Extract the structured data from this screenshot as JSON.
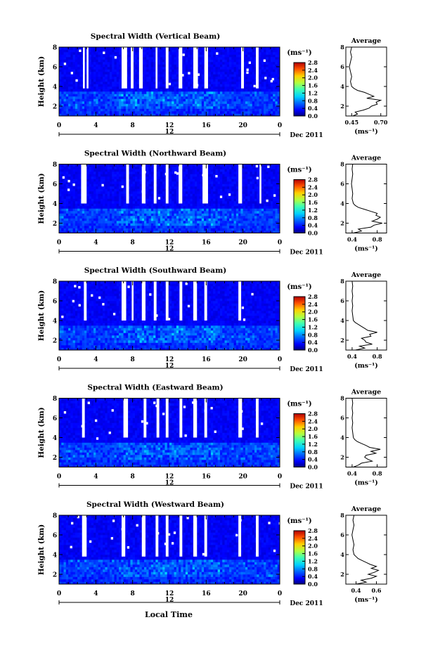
{
  "figure": {
    "x_title": "Local Time",
    "colorbar_unit": "(ms⁻¹)",
    "avg_title": "Average",
    "avg_unit": "(ms⁻¹)",
    "date_label": "Dec 2011",
    "midline_label": "12"
  },
  "chart_data": [
    {
      "type": "heatmap",
      "title": "Spectral Width (Vertical Beam)",
      "ylabel": "Height (km)",
      "xlabel": "Local Time",
      "x_ticks": [
        "0",
        "4",
        "8",
        "12",
        "16",
        "20",
        "0"
      ],
      "y_ticks": [
        "2",
        "4",
        "6",
        "8"
      ],
      "xlim": [
        0,
        24
      ],
      "ylim": [
        1,
        8
      ],
      "colorbar": {
        "label": "(ms⁻¹)",
        "ticks": [
          "0.0",
          "0.4",
          "0.8",
          "1.2",
          "1.6",
          "2.0",
          "2.4",
          "2.8"
        ],
        "range": [
          0,
          2.8
        ]
      },
      "gaps_hours": [
        [
          2.6,
          2.8
        ],
        [
          3.0,
          3.2
        ],
        [
          6.8,
          7.4
        ],
        [
          7.8,
          8.1
        ],
        [
          8.7,
          9.1
        ],
        [
          10.5,
          10.7
        ],
        [
          11.6,
          11.9
        ],
        [
          13.0,
          13.4
        ],
        [
          14.6,
          15.1
        ],
        [
          15.8,
          16.2
        ],
        [
          19.8,
          20.1
        ],
        [
          21.4,
          21.7
        ]
      ],
      "gap_top_km": [
        [
          2.6,
          3.8
        ],
        [
          3.0,
          3.8
        ],
        [
          6.8,
          3.8
        ],
        [
          7.8,
          3.8
        ],
        [
          8.7,
          3.8
        ],
        [
          10.5,
          3.8
        ],
        [
          11.6,
          3.8
        ],
        [
          13.0,
          3.8
        ],
        [
          14.6,
          3.8
        ],
        [
          15.8,
          3.8
        ],
        [
          19.8,
          3.8
        ],
        [
          21.4,
          3.8
        ]
      ],
      "enhanced_layer_km": [
        1.8,
        3.6
      ],
      "average_profile": {
        "xlabel": "(ms⁻¹)",
        "x_ticks": [
          "0.45",
          "0.70"
        ],
        "xlim": [
          0.4,
          0.75
        ],
        "y_ticks": [
          "2",
          "4",
          "6",
          "8"
        ],
        "ylim": [
          1,
          8
        ],
        "height_km": [
          1.0,
          1.2,
          1.4,
          1.6,
          1.8,
          2.0,
          2.2,
          2.4,
          2.6,
          2.8,
          3.0,
          3.2,
          3.4,
          3.6,
          3.8,
          4.0,
          4.5,
          5.0,
          5.5,
          6.0,
          6.5,
          7.0,
          7.5,
          8.0
        ],
        "value": [
          0.46,
          0.5,
          0.48,
          0.55,
          0.6,
          0.62,
          0.67,
          0.66,
          0.7,
          0.58,
          0.64,
          0.6,
          0.56,
          0.5,
          0.47,
          0.45,
          0.44,
          0.45,
          0.44,
          0.43,
          0.44,
          0.45,
          0.44,
          0.45
        ]
      }
    },
    {
      "type": "heatmap",
      "title": "Spectral Width (Northward Beam)",
      "ylabel": "Height (km)",
      "xlabel": "Local Time",
      "x_ticks": [
        "0",
        "4",
        "8",
        "12",
        "16",
        "20",
        "0"
      ],
      "y_ticks": [
        "2",
        "4",
        "6",
        "8"
      ],
      "xlim": [
        0,
        24
      ],
      "ylim": [
        1,
        8
      ],
      "colorbar": {
        "label": "(ms⁻¹)",
        "ticks": [
          "0.0",
          "0.4",
          "0.8",
          "1.2",
          "1.6",
          "2.0",
          "2.4",
          "2.8"
        ],
        "range": [
          0,
          2.8
        ]
      },
      "gaps_hours": [
        [
          2.4,
          3.0
        ],
        [
          7.3,
          7.6
        ],
        [
          9.0,
          9.4
        ],
        [
          10.3,
          10.6
        ],
        [
          11.6,
          11.9
        ],
        [
          13.0,
          13.4
        ],
        [
          15.6,
          16.2
        ],
        [
          19.5,
          19.9
        ],
        [
          21.8,
          22.0
        ]
      ],
      "gap_top_km": [
        [
          2.4,
          4.0
        ],
        [
          7.3,
          4.0
        ],
        [
          9.0,
          4.0
        ],
        [
          10.3,
          4.0
        ],
        [
          11.6,
          4.0
        ],
        [
          13.0,
          4.0
        ],
        [
          15.6,
          4.0
        ],
        [
          19.5,
          4.0
        ],
        [
          21.8,
          4.0
        ]
      ],
      "enhanced_layer_km": [
        1.8,
        3.6
      ],
      "average_profile": {
        "xlabel": "(ms⁻¹)",
        "x_ticks": [
          "0.4",
          "0.8"
        ],
        "xlim": [
          0.3,
          0.95
        ],
        "y_ticks": [
          "2",
          "4",
          "6",
          "8"
        ],
        "ylim": [
          1,
          8
        ],
        "height_km": [
          1.0,
          1.2,
          1.4,
          1.6,
          1.8,
          2.0,
          2.2,
          2.4,
          2.6,
          2.8,
          3.0,
          3.2,
          3.4,
          3.6,
          3.8,
          4.0,
          4.5,
          5.0,
          5.5,
          6.0,
          6.5,
          7.0,
          7.5,
          8.0
        ],
        "value": [
          0.42,
          0.55,
          0.5,
          0.7,
          0.75,
          0.88,
          0.72,
          0.8,
          0.85,
          0.78,
          0.8,
          0.7,
          0.6,
          0.5,
          0.45,
          0.42,
          0.4,
          0.41,
          0.4,
          0.39,
          0.4,
          0.41,
          0.4,
          0.41
        ]
      }
    },
    {
      "type": "heatmap",
      "title": "Spectral Width (Southward Beam)",
      "ylabel": "Height (km)",
      "xlabel": "Local Time",
      "x_ticks": [
        "0",
        "4",
        "8",
        "12",
        "16",
        "20",
        "0"
      ],
      "y_ticks": [
        "2",
        "4",
        "6",
        "8"
      ],
      "xlim": [
        0,
        24
      ],
      "ylim": [
        1,
        8
      ],
      "colorbar": {
        "label": "(ms⁻¹)",
        "ticks": [
          "0.0",
          "0.4",
          "0.8",
          "1.2",
          "1.6",
          "2.0",
          "2.4",
          "2.8"
        ],
        "range": [
          0,
          2.8
        ]
      },
      "gaps_hours": [
        [
          2.7,
          3.0
        ],
        [
          6.8,
          7.3
        ],
        [
          7.9,
          8.1
        ],
        [
          9.0,
          9.4
        ],
        [
          10.3,
          10.6
        ],
        [
          11.6,
          11.9
        ],
        [
          13.1,
          13.4
        ],
        [
          14.6,
          15.0
        ],
        [
          15.8,
          16.1
        ],
        [
          19.5,
          19.8
        ]
      ],
      "gap_top_km": [
        [
          2.7,
          4.0
        ],
        [
          6.8,
          4.0
        ],
        [
          7.9,
          4.0
        ],
        [
          9.0,
          4.0
        ],
        [
          10.3,
          4.0
        ],
        [
          11.6,
          4.0
        ],
        [
          13.1,
          4.0
        ],
        [
          14.6,
          4.0
        ],
        [
          15.8,
          4.0
        ],
        [
          19.5,
          4.0
        ]
      ],
      "enhanced_layer_km": [
        1.8,
        3.6
      ],
      "average_profile": {
        "xlabel": "(ms⁻¹)",
        "x_ticks": [
          "0.4",
          "0.8"
        ],
        "xlim": [
          0.3,
          0.95
        ],
        "y_ticks": [
          "2",
          "4",
          "6",
          "8"
        ],
        "ylim": [
          1,
          8
        ],
        "height_km": [
          1.0,
          1.2,
          1.4,
          1.6,
          1.8,
          2.0,
          2.2,
          2.4,
          2.6,
          2.8,
          3.0,
          3.2,
          3.4,
          3.6,
          3.8,
          4.0,
          4.5,
          5.0,
          5.5,
          6.0,
          6.5,
          7.0,
          7.5,
          8.0
        ],
        "value": [
          0.45,
          0.6,
          0.52,
          0.72,
          0.62,
          0.6,
          0.55,
          0.7,
          0.68,
          0.8,
          0.65,
          0.6,
          0.55,
          0.5,
          0.45,
          0.42,
          0.41,
          0.4,
          0.41,
          0.4,
          0.41,
          0.4,
          0.41,
          0.4
        ]
      }
    },
    {
      "type": "heatmap",
      "title": "Spectral Width (Eastward Beam)",
      "ylabel": "Height (km)",
      "xlabel": "Local Time",
      "x_ticks": [
        "0",
        "4",
        "8",
        "12",
        "16",
        "20",
        "0"
      ],
      "y_ticks": [
        "2",
        "4",
        "6",
        "8"
      ],
      "xlim": [
        0,
        24
      ],
      "ylim": [
        1,
        8
      ],
      "colorbar": {
        "label": "(ms⁻¹)",
        "ticks": [
          "0.0",
          "0.4",
          "0.8",
          "1.2",
          "1.6",
          "2.0",
          "2.4",
          "2.8"
        ],
        "range": [
          0,
          2.8
        ]
      },
      "gaps_hours": [
        [
          2.5,
          2.8
        ],
        [
          7.0,
          7.5
        ],
        [
          9.2,
          9.5
        ],
        [
          10.6,
          10.9
        ],
        [
          11.6,
          11.9
        ],
        [
          13.1,
          13.4
        ],
        [
          14.6,
          15.0
        ],
        [
          15.8,
          16.1
        ],
        [
          19.5,
          19.9
        ],
        [
          21.4,
          21.7
        ]
      ],
      "gap_top_km": [
        [
          2.5,
          4.0
        ],
        [
          7.0,
          4.0
        ],
        [
          9.2,
          4.0
        ],
        [
          10.6,
          4.0
        ],
        [
          11.6,
          4.0
        ],
        [
          13.1,
          4.0
        ],
        [
          14.6,
          4.0
        ],
        [
          15.8,
          4.0
        ],
        [
          19.5,
          4.0
        ],
        [
          21.4,
          4.0
        ]
      ],
      "enhanced_layer_km": [
        1.8,
        3.6
      ],
      "average_profile": {
        "xlabel": "(ms⁻¹)",
        "x_ticks": [
          "0.4",
          "0.8"
        ],
        "xlim": [
          0.3,
          0.95
        ],
        "y_ticks": [
          "2",
          "4",
          "6",
          "8"
        ],
        "ylim": [
          1,
          8
        ],
        "height_km": [
          1.0,
          1.2,
          1.4,
          1.6,
          1.8,
          2.0,
          2.2,
          2.4,
          2.6,
          2.8,
          3.0,
          3.2,
          3.4,
          3.6,
          3.8,
          4.0,
          4.5,
          5.0,
          5.5,
          6.0,
          6.5,
          7.0,
          7.5,
          8.0
        ],
        "value": [
          0.42,
          0.5,
          0.55,
          0.72,
          0.65,
          0.6,
          0.62,
          0.78,
          0.7,
          0.85,
          0.68,
          0.62,
          0.55,
          0.48,
          0.44,
          0.42,
          0.41,
          0.4,
          0.41,
          0.4,
          0.41,
          0.4,
          0.41,
          0.4
        ]
      }
    },
    {
      "type": "heatmap",
      "title": "Spectral Width (Westward Beam)",
      "ylabel": "Height (km)",
      "xlabel": "Local Time",
      "x_ticks": [
        "0",
        "4",
        "8",
        "12",
        "16",
        "20",
        "0"
      ],
      "y_ticks": [
        "2",
        "4",
        "6",
        "8"
      ],
      "xlim": [
        0,
        24
      ],
      "ylim": [
        1,
        8
      ],
      "colorbar": {
        "label": "(ms⁻¹)",
        "ticks": [
          "0.0",
          "0.4",
          "0.8",
          "1.2",
          "1.6",
          "2.0",
          "2.4",
          "2.8"
        ],
        "range": [
          0,
          2.8
        ]
      },
      "gaps_hours": [
        [
          2.5,
          3.0
        ],
        [
          6.8,
          7.2
        ],
        [
          9.0,
          9.4
        ],
        [
          10.5,
          10.8
        ],
        [
          11.6,
          11.9
        ],
        [
          13.1,
          13.4
        ],
        [
          14.6,
          15.0
        ],
        [
          15.8,
          16.1
        ],
        [
          19.5,
          19.8
        ],
        [
          21.4,
          21.7
        ]
      ],
      "gap_top_km": [
        [
          2.5,
          3.8
        ],
        [
          6.8,
          3.8
        ],
        [
          9.0,
          3.8
        ],
        [
          10.5,
          3.8
        ],
        [
          11.6,
          3.8
        ],
        [
          13.1,
          3.8
        ],
        [
          14.6,
          3.8
        ],
        [
          15.8,
          3.8
        ],
        [
          19.5,
          3.8
        ],
        [
          21.4,
          3.8
        ]
      ],
      "enhanced_layer_km": [
        1.8,
        3.6
      ],
      "average_profile": {
        "xlabel": "(ms⁻¹)",
        "x_ticks": [
          "0.4",
          "0.6"
        ],
        "xlim": [
          0.3,
          0.7
        ],
        "y_ticks": [
          "2",
          "4",
          "6",
          "8"
        ],
        "ylim": [
          1,
          8
        ],
        "height_km": [
          1.0,
          1.2,
          1.4,
          1.6,
          1.8,
          2.0,
          2.2,
          2.4,
          2.6,
          2.8,
          3.0,
          3.2,
          3.4,
          3.6,
          3.8,
          4.0,
          4.5,
          5.0,
          5.5,
          6.0,
          6.5,
          7.0,
          7.5,
          8.0
        ],
        "value": [
          0.4,
          0.5,
          0.45,
          0.55,
          0.6,
          0.52,
          0.58,
          0.62,
          0.55,
          0.6,
          0.54,
          0.5,
          0.46,
          0.42,
          0.4,
          0.38,
          0.37,
          0.38,
          0.37,
          0.36,
          0.37,
          0.38,
          0.37,
          0.38
        ]
      }
    }
  ]
}
